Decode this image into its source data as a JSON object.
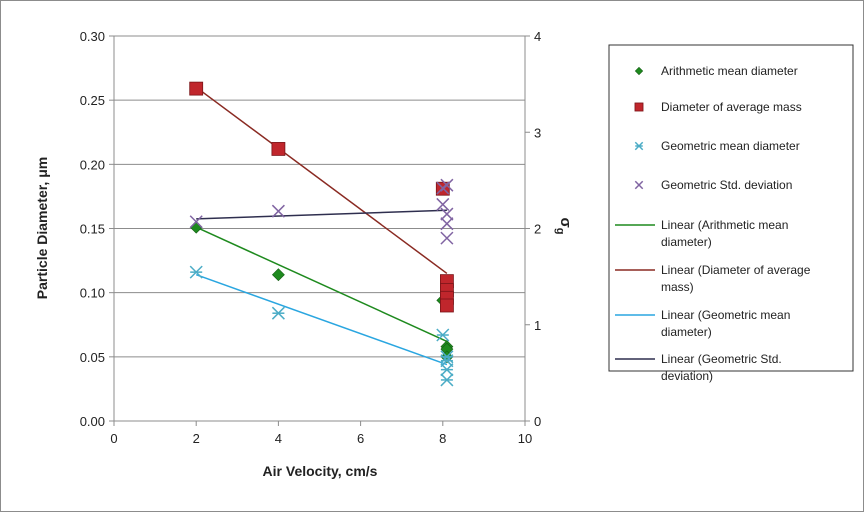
{
  "chart_data": {
    "type": "scatter",
    "xlabel": "Air Velocity, cm/s",
    "ylabel": "Particle Diameter, μm",
    "y2label_base": "σ",
    "y2label_sub": "g",
    "xlim": [
      0,
      10
    ],
    "ylim": [
      0,
      0.3
    ],
    "y2lim": [
      0,
      4
    ],
    "x_ticks": [
      "0",
      "2",
      "4",
      "6",
      "8",
      "10"
    ],
    "y_ticks": [
      "0.00",
      "0.05",
      "0.10",
      "0.15",
      "0.20",
      "0.25",
      "0.30"
    ],
    "y2_ticks": [
      "0",
      "1",
      "2",
      "3",
      "4"
    ],
    "grid": "horizontal",
    "legend_position": "right",
    "series": [
      {
        "name": "Arithmetic mean diameter",
        "axis": "left",
        "marker": "diamond",
        "color": "#1e8a1e",
        "points": [
          [
            2,
            0.151
          ],
          [
            4,
            0.114
          ],
          [
            8,
            0.094
          ],
          [
            8.1,
            0.058
          ],
          [
            8.1,
            0.056
          ],
          [
            8.1,
            0.05
          ]
        ]
      },
      {
        "name": "Diameter of average mass",
        "axis": "left",
        "marker": "square",
        "color": "#c0262c",
        "points": [
          [
            2,
            0.259
          ],
          [
            4,
            0.212
          ],
          [
            8,
            0.181
          ],
          [
            8.1,
            0.109
          ],
          [
            8.1,
            0.102
          ],
          [
            8.1,
            0.096
          ],
          [
            8.1,
            0.09
          ]
        ]
      },
      {
        "name": "Geometric mean diameter",
        "axis": "left",
        "marker": "star",
        "color": "#4bacc6",
        "points": [
          [
            2,
            0.116
          ],
          [
            4,
            0.084
          ],
          [
            8,
            0.067
          ],
          [
            8.1,
            0.05
          ],
          [
            8.1,
            0.047
          ],
          [
            8.1,
            0.04
          ],
          [
            8.1,
            0.032
          ]
        ]
      },
      {
        "name": "Geometric Std. deviation",
        "axis": "right",
        "marker": "x",
        "color": "#8064a2",
        "points": [
          [
            2,
            2.07
          ],
          [
            4,
            2.18
          ],
          [
            8,
            2.25
          ],
          [
            8,
            2.42
          ],
          [
            8.1,
            2.45
          ],
          [
            8.1,
            2.15
          ],
          [
            8.1,
            2.05
          ],
          [
            8.1,
            1.9
          ]
        ]
      }
    ],
    "trendlines": [
      {
        "name": "Linear (Arithmetic mean diameter)",
        "label_lines": [
          "Linear (Arithmetic mean",
          "diameter)"
        ],
        "axis": "left",
        "color": "#1e8a1e",
        "x": [
          2,
          8.1
        ],
        "y": [
          0.151,
          0.062
        ]
      },
      {
        "name": "Linear (Diameter of average mass)",
        "label_lines": [
          "Linear (Diameter of average",
          "mass)"
        ],
        "axis": "left",
        "color": "#8a2a22",
        "x": [
          2,
          8.1
        ],
        "y": [
          0.26,
          0.115
        ]
      },
      {
        "name": "Linear (Geometric mean diameter)",
        "label_lines": [
          "Linear (Geometric mean",
          "diameter)"
        ],
        "axis": "left",
        "color": "#2aa6e0",
        "x": [
          2,
          8.1
        ],
        "y": [
          0.114,
          0.044
        ]
      },
      {
        "name": "Linear (Geometric Std. deviation)",
        "label_lines": [
          "Linear (Geometric Std.",
          "deviation)"
        ],
        "axis": "right",
        "color": "#2f2f4f",
        "x": [
          2,
          8.1
        ],
        "y": [
          2.1,
          2.19
        ]
      }
    ]
  }
}
